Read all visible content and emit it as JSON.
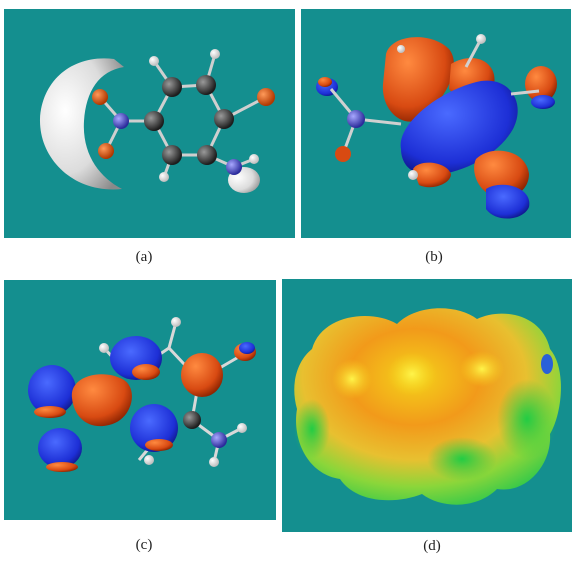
{
  "captions": {
    "a": "(a)",
    "b": "(b)",
    "c": "(c)",
    "d": "(d)"
  },
  "colors": {
    "background": "#148f8f",
    "lobe_red": "#e0541a",
    "lobe_blue": "#1d2fd6",
    "carbon": "#3a3a3a",
    "nitrogen": "#5a5ac8",
    "oxygen": "#e0541a",
    "hydrogen": "#ffffff"
  }
}
